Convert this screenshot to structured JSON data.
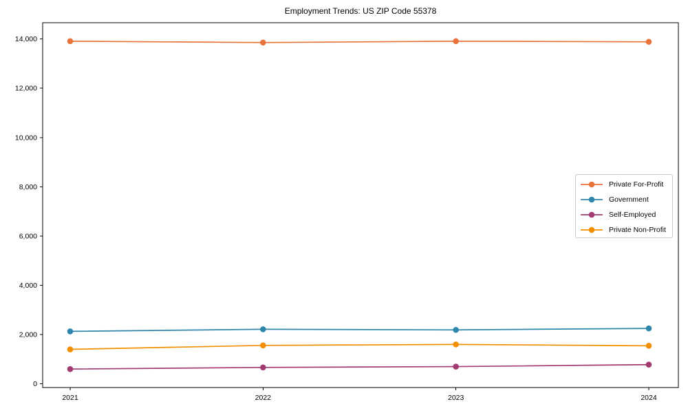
{
  "title": "Employment Trends: US ZIP Code 55378",
  "chart_data": {
    "type": "line",
    "title": "Employment Trends: US ZIP Code 55378",
    "xlabel": "",
    "ylabel": "",
    "x": [
      "2021",
      "2022",
      "2023",
      "2024"
    ],
    "series": [
      {
        "name": "Private For-Profit",
        "color": "#E8743B",
        "values": [
          13910,
          13855,
          13910,
          13885
        ]
      },
      {
        "name": "Government",
        "color": "#2E86AB",
        "values": [
          2130,
          2215,
          2190,
          2250
        ]
      },
      {
        "name": "Self-Employed",
        "color": "#A23B72",
        "values": [
          600,
          665,
          700,
          780
        ]
      },
      {
        "name": "Private Non-Profit",
        "color": "#F18F01",
        "values": [
          1400,
          1560,
          1600,
          1545
        ]
      }
    ],
    "ylim": [
      -150,
      14660
    ],
    "yticks": [
      0,
      2000,
      4000,
      6000,
      8000,
      10000,
      12000,
      14000
    ],
    "ytick_labels": [
      "0",
      "2,000",
      "4,000",
      "6,000",
      "8,000",
      "10,000",
      "12,000",
      "14,000"
    ],
    "grid": false,
    "marker": "circle",
    "legend_position": "center-right"
  }
}
